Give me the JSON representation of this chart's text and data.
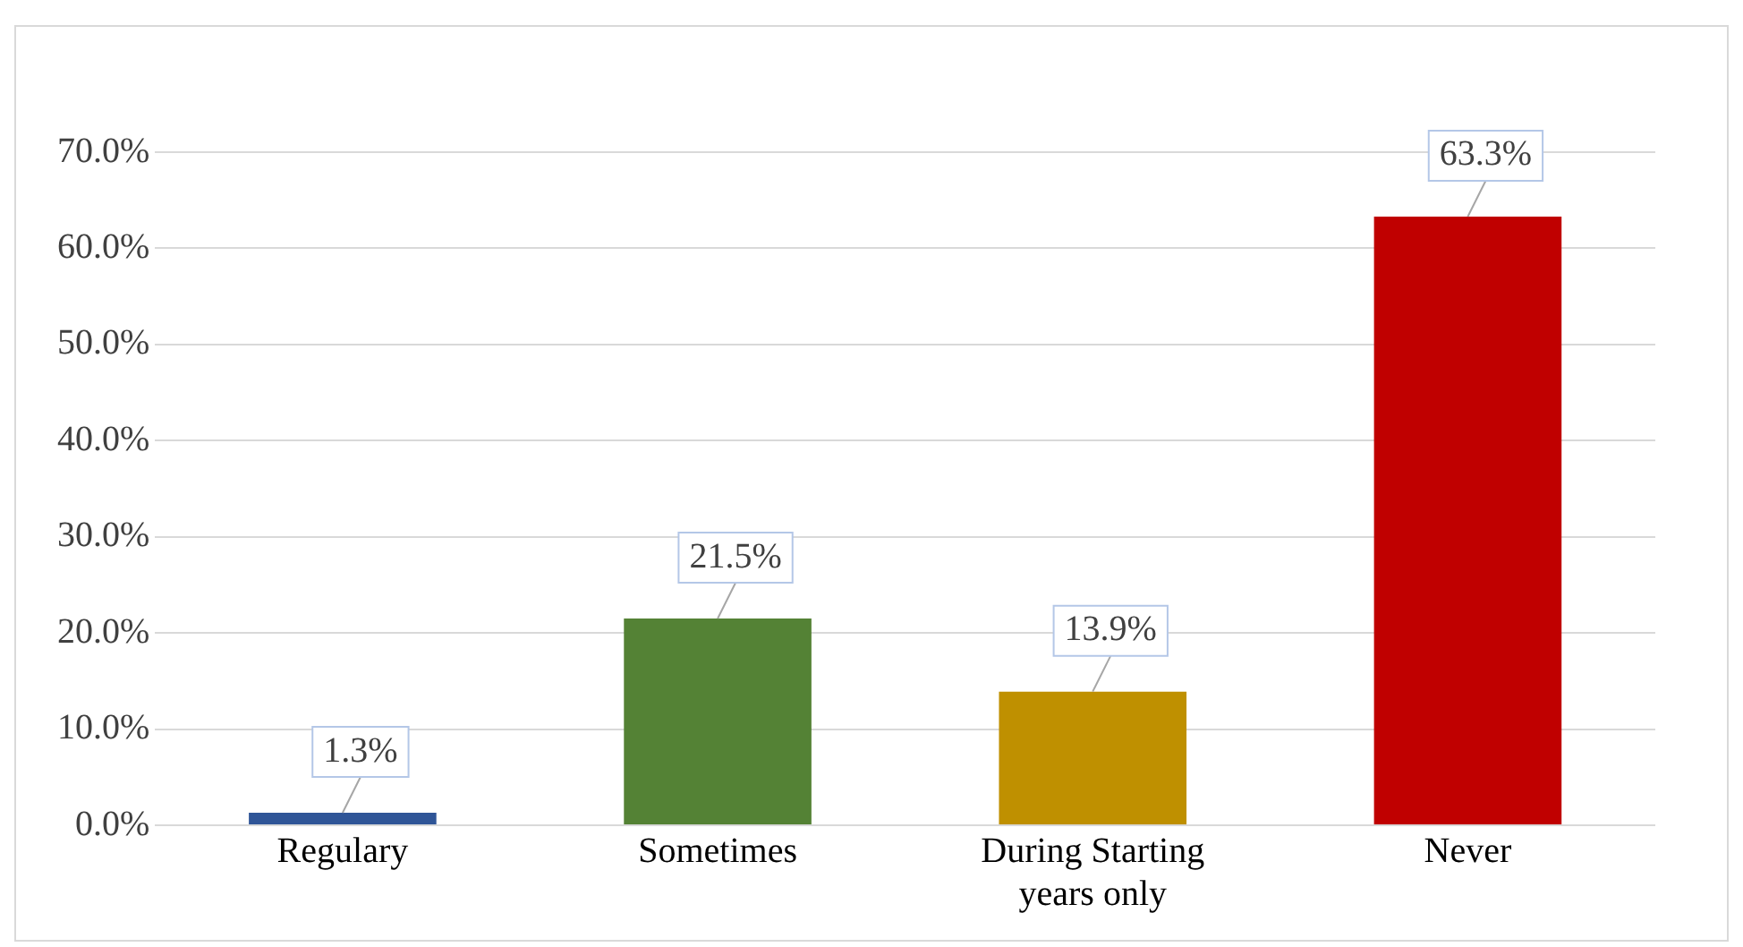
{
  "chart_data": {
    "type": "bar",
    "categories": [
      "Regulary",
      "Sometimes",
      "During Starting years only",
      "Never"
    ],
    "values": [
      1.3,
      21.5,
      13.9,
      63.3
    ],
    "colors": [
      "#2f5597",
      "#548235",
      "#bf9000",
      "#c00000"
    ],
    "value_labels": [
      "1.3%",
      "21.5%",
      "13.9%",
      "63.3%"
    ],
    "ylim": [
      0,
      70
    ],
    "yticks": [
      {
        "value": 0,
        "label": "0.0%"
      },
      {
        "value": 10,
        "label": "10.0%"
      },
      {
        "value": 20,
        "label": "20.0%"
      },
      {
        "value": 30,
        "label": "30.0%"
      },
      {
        "value": 40,
        "label": "40.0%"
      },
      {
        "value": 50,
        "label": "50.0%"
      },
      {
        "value": 60,
        "label": "60.0%"
      },
      {
        "value": 70,
        "label": "70.0%"
      }
    ],
    "grid": true,
    "legend": false
  }
}
